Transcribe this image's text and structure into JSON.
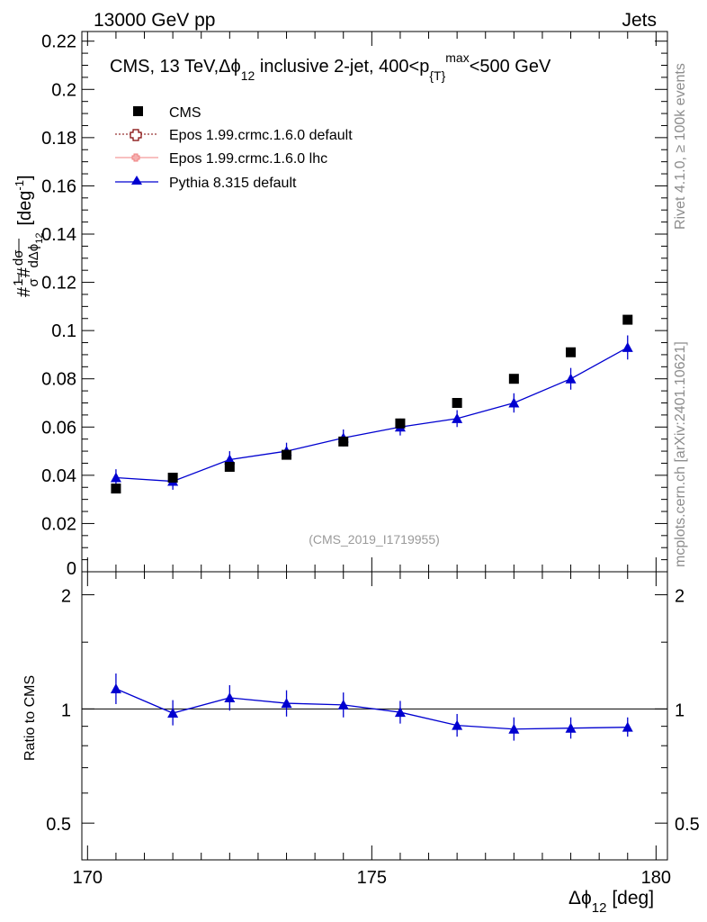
{
  "header": {
    "left_label": "13000 GeV pp",
    "right_label": "Jets"
  },
  "side_text": {
    "rivet": "Rivet 4.1.0, ≥ 100k events",
    "mcplots": "mcplots.cern.ch [arXiv:2401.10621]"
  },
  "chart_data": [
    {
      "type": "scatter",
      "title": "CMS, 13 TeV,Δϕ",
      "title_sub": "12",
      "title_rest": " inclusive 2-jet, 400<p",
      "title_sub2": "{T}",
      "title_sup2": "max",
      "title_end": "<500 GeV",
      "watermark": "(CMS_2019_I1719955)",
      "ylabel": "#¹⁄σ#dσ/dΔϕ₁₂ [deg⁻¹]",
      "ylabel_parts": {
        "hash": "#",
        "one": "1",
        "sigma": "σ",
        "dsigma": "dσ",
        "dphi": "dΔϕ",
        "sub": "12",
        "unit": "[deg",
        "unit_sup": "-1",
        "unit_end": "]"
      },
      "ylim": [
        0,
        0.224
      ],
      "yticks": [
        0,
        0.02,
        0.04,
        0.06,
        0.08,
        0.1,
        0.12,
        0.14,
        0.16,
        0.18,
        0.2,
        0.22
      ],
      "ytick_labels": [
        "0",
        "0.02",
        "0.04",
        "0.06",
        "0.08",
        "0.1",
        "0.12",
        "0.14",
        "0.16",
        "0.18",
        "0.2",
        "0.22"
      ],
      "x": [
        170.5,
        171.5,
        172.5,
        173.5,
        174.5,
        175.5,
        176.5,
        177.5,
        178.5,
        179.5
      ],
      "series": [
        {
          "name": "CMS",
          "marker": "square",
          "color": "#000000",
          "values": [
            0.0345,
            0.039,
            0.0435,
            0.0485,
            0.054,
            0.0615,
            0.07,
            0.08,
            0.091,
            0.1045
          ]
        },
        {
          "name": "Epos 1.99.crmc.1.6.0 default",
          "marker": "open-cross",
          "color": "#7f0000",
          "values": []
        },
        {
          "name": "Epos 1.99.crmc.1.6.0 lhc",
          "marker": "cross",
          "color": "#f08080",
          "values": []
        },
        {
          "name": "Pythia 8.315 default",
          "marker": "triangle",
          "color": "#0000d0",
          "values": [
            0.039,
            0.0375,
            0.0465,
            0.05,
            0.0555,
            0.06,
            0.0635,
            0.07,
            0.08,
            0.093
          ],
          "errors": [
            0.0035,
            0.0035,
            0.0035,
            0.0035,
            0.0035,
            0.0035,
            0.0035,
            0.004,
            0.0045,
            0.005
          ]
        }
      ]
    },
    {
      "type": "line",
      "ylabel": "Ratio to CMS",
      "ylim": [
        0.4,
        2.3
      ],
      "ytick_labels": [
        "0.5",
        "1",
        "2"
      ],
      "yticks": [
        0.5,
        1,
        2
      ],
      "xlabel_main": "Δϕ",
      "xlabel_sub": "12",
      "xlabel_unit": " [deg]",
      "xlim": [
        169.9,
        180.2
      ],
      "xticks": [
        170,
        175,
        180
      ],
      "xtick_labels": [
        "170",
        "175",
        "180"
      ],
      "x": [
        170.5,
        171.5,
        172.5,
        173.5,
        174.5,
        175.5,
        176.5,
        177.5,
        178.5,
        179.5
      ],
      "series": [
        {
          "name": "Pythia 8.315 default",
          "color": "#0000d0",
          "values": [
            1.13,
            0.975,
            1.07,
            1.035,
            1.025,
            0.98,
            0.905,
            0.885,
            0.89,
            0.895
          ],
          "errors_up": [
            0.11,
            0.08,
            0.085,
            0.085,
            0.08,
            0.07,
            0.065,
            0.065,
            0.06,
            0.055
          ],
          "errors_down": [
            0.1,
            0.07,
            0.08,
            0.08,
            0.075,
            0.065,
            0.06,
            0.06,
            0.055,
            0.05
          ]
        }
      ]
    }
  ]
}
